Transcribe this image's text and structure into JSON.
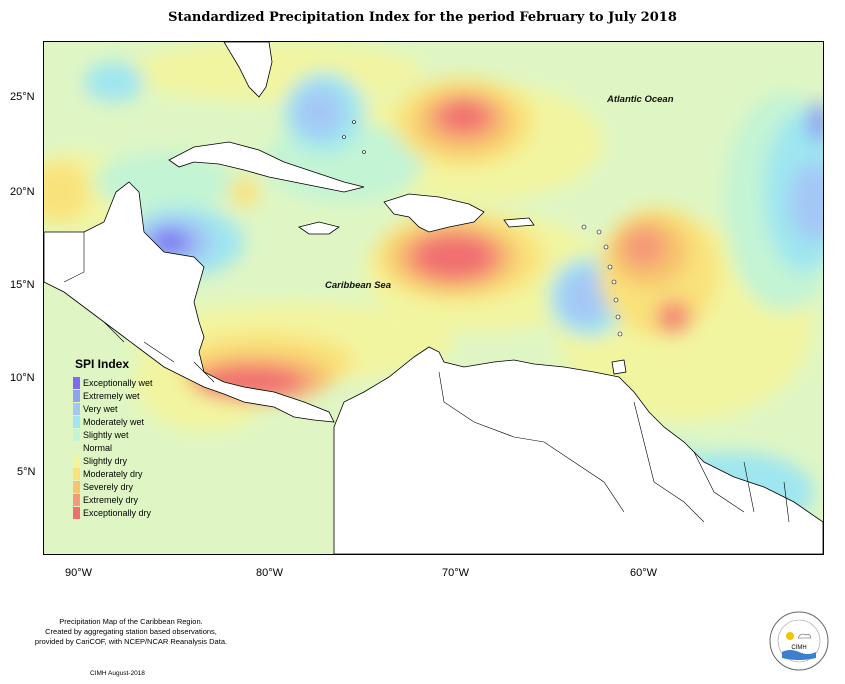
{
  "title": "Standardized Precipitation Index for the period February to July 2018",
  "axes": {
    "x_ticks": [
      "90°W",
      "80°W",
      "70°W",
      "60°W"
    ],
    "y_ticks": [
      "25°N",
      "20°N",
      "15°N",
      "10°N",
      "5°N"
    ]
  },
  "map_labels": {
    "atlantic": "Atlantic Ocean",
    "caribbean": "Caribbean Sea"
  },
  "legend": {
    "title": "SPI Index",
    "items": [
      {
        "label": "Exceptionally wet",
        "color": "#7b6cf0"
      },
      {
        "label": "Extremely wet",
        "color": "#8fa2f2"
      },
      {
        "label": "Very wet",
        "color": "#a4c8f6"
      },
      {
        "label": "Moderately wet",
        "color": "#9fe6f0"
      },
      {
        "label": "Slightly wet",
        "color": "#c3f4d4"
      },
      {
        "label": "Normal",
        "color": "#dff6c4"
      },
      {
        "label": "Slightly dry",
        "color": "#f2f5a0"
      },
      {
        "label": "Moderately dry",
        "color": "#f9e27a"
      },
      {
        "label": "Severely dry",
        "color": "#f7c36e"
      },
      {
        "label": "Extremely dry",
        "color": "#f59a78"
      },
      {
        "label": "Exceptionally dry",
        "color": "#f07070"
      }
    ]
  },
  "footer": {
    "line1": "Precipitation Map of the Caribbean Region.",
    "line2": "Created by aggregating station based observations,",
    "line3": "provided by CariCOF, with NCEP/NCAR Reanalysis Data.",
    "credit": "CIMH August-2018"
  },
  "logo": {
    "text": "CIMH"
  }
}
